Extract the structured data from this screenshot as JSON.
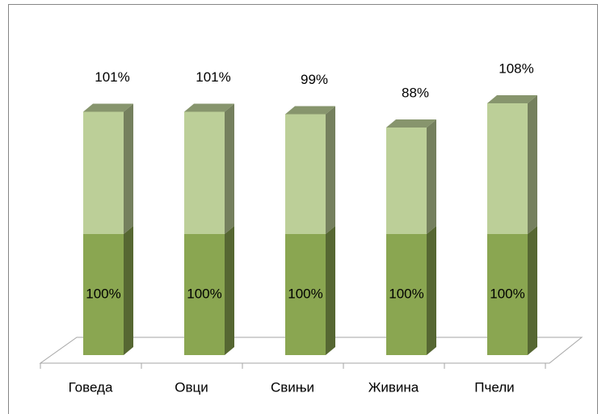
{
  "chart_data": {
    "type": "bar3d_stacked",
    "categories": [
      "Говеда",
      "Овци",
      "Свињи",
      "Живина",
      "Пчели"
    ],
    "series": [
      {
        "color": "#8aa651",
        "values": [
          100,
          100,
          100,
          100,
          100
        ],
        "value_labels": [
          "100%",
          "100%",
          "100%",
          "100%",
          "100%"
        ]
      },
      {
        "color": "#bccf98",
        "values": [
          101,
          101,
          99,
          88,
          108
        ],
        "value_labels": [
          "101%",
          "101%",
          "99%",
          "88%",
          "108%"
        ]
      }
    ]
  }
}
